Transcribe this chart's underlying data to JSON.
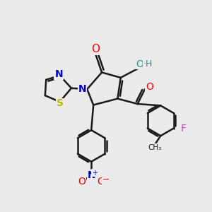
{
  "bg_color": "#ebebeb",
  "bond_color": "#1a1a1a",
  "bw": 1.8,
  "colors": {
    "O": "#ff0000",
    "N": "#0000cc",
    "S": "#b8b800",
    "F": "#cc44cc",
    "OH_O": "#2a9090",
    "OH_H": "#2a9090"
  },
  "figsize": [
    3.0,
    3.0
  ],
  "dpi": 100
}
